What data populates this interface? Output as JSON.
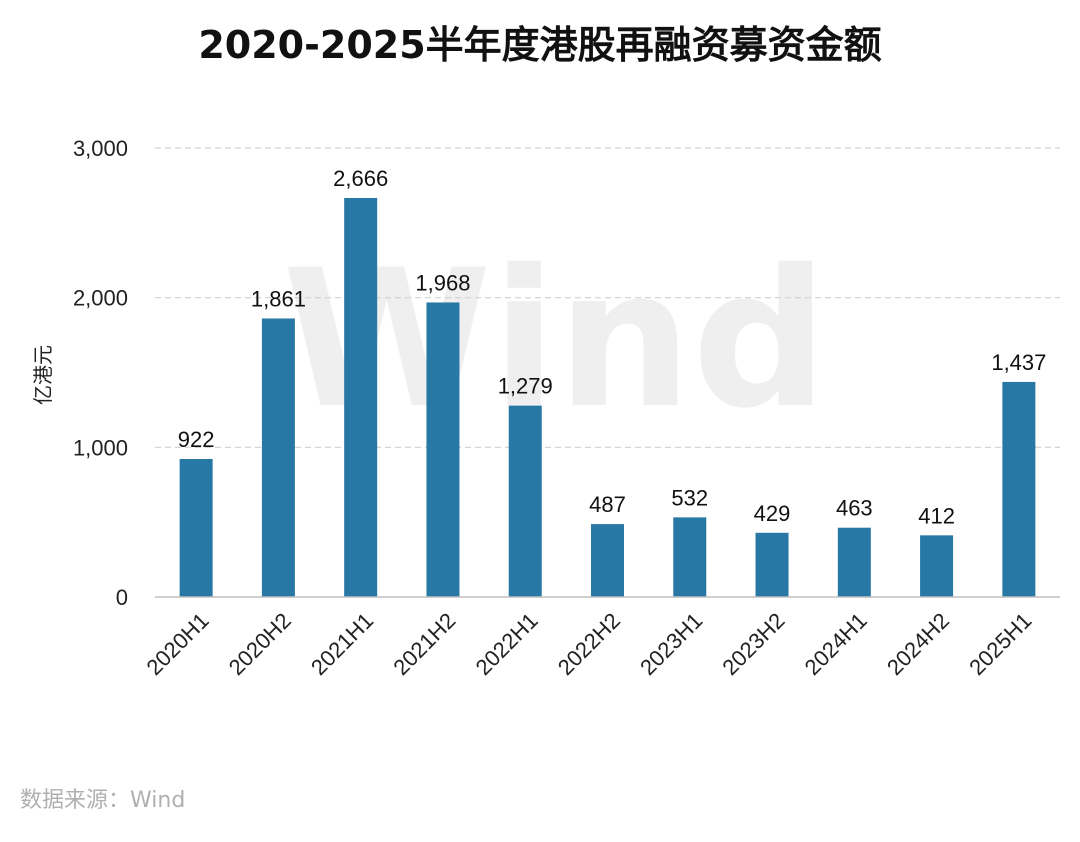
{
  "chart_data": {
    "type": "bar",
    "title": "2020-2025半年度港股再融资募资金额",
    "ylabel": "亿港元",
    "xlabel": "",
    "ylim": [
      0,
      3000
    ],
    "yticks": [
      0,
      1000,
      2000,
      3000
    ],
    "ytick_labels": [
      "0",
      "1,000",
      "2,000",
      "3,000"
    ],
    "grid": true,
    "categories": [
      "2020H1",
      "2020H2",
      "2021H1",
      "2021H2",
      "2022H1",
      "2022H2",
      "2023H1",
      "2023H2",
      "2024H1",
      "2024H2",
      "2025H1"
    ],
    "values": [
      922,
      1861,
      2666,
      1968,
      1279,
      487,
      532,
      429,
      463,
      412,
      1437
    ],
    "value_labels": [
      "922",
      "1,861",
      "2,666",
      "1,968",
      "1,279",
      "487",
      "532",
      "429",
      "463",
      "412",
      "1,437"
    ],
    "bar_color": "#2878a6"
  },
  "watermark": "Wind",
  "source": "数据来源：Wind"
}
